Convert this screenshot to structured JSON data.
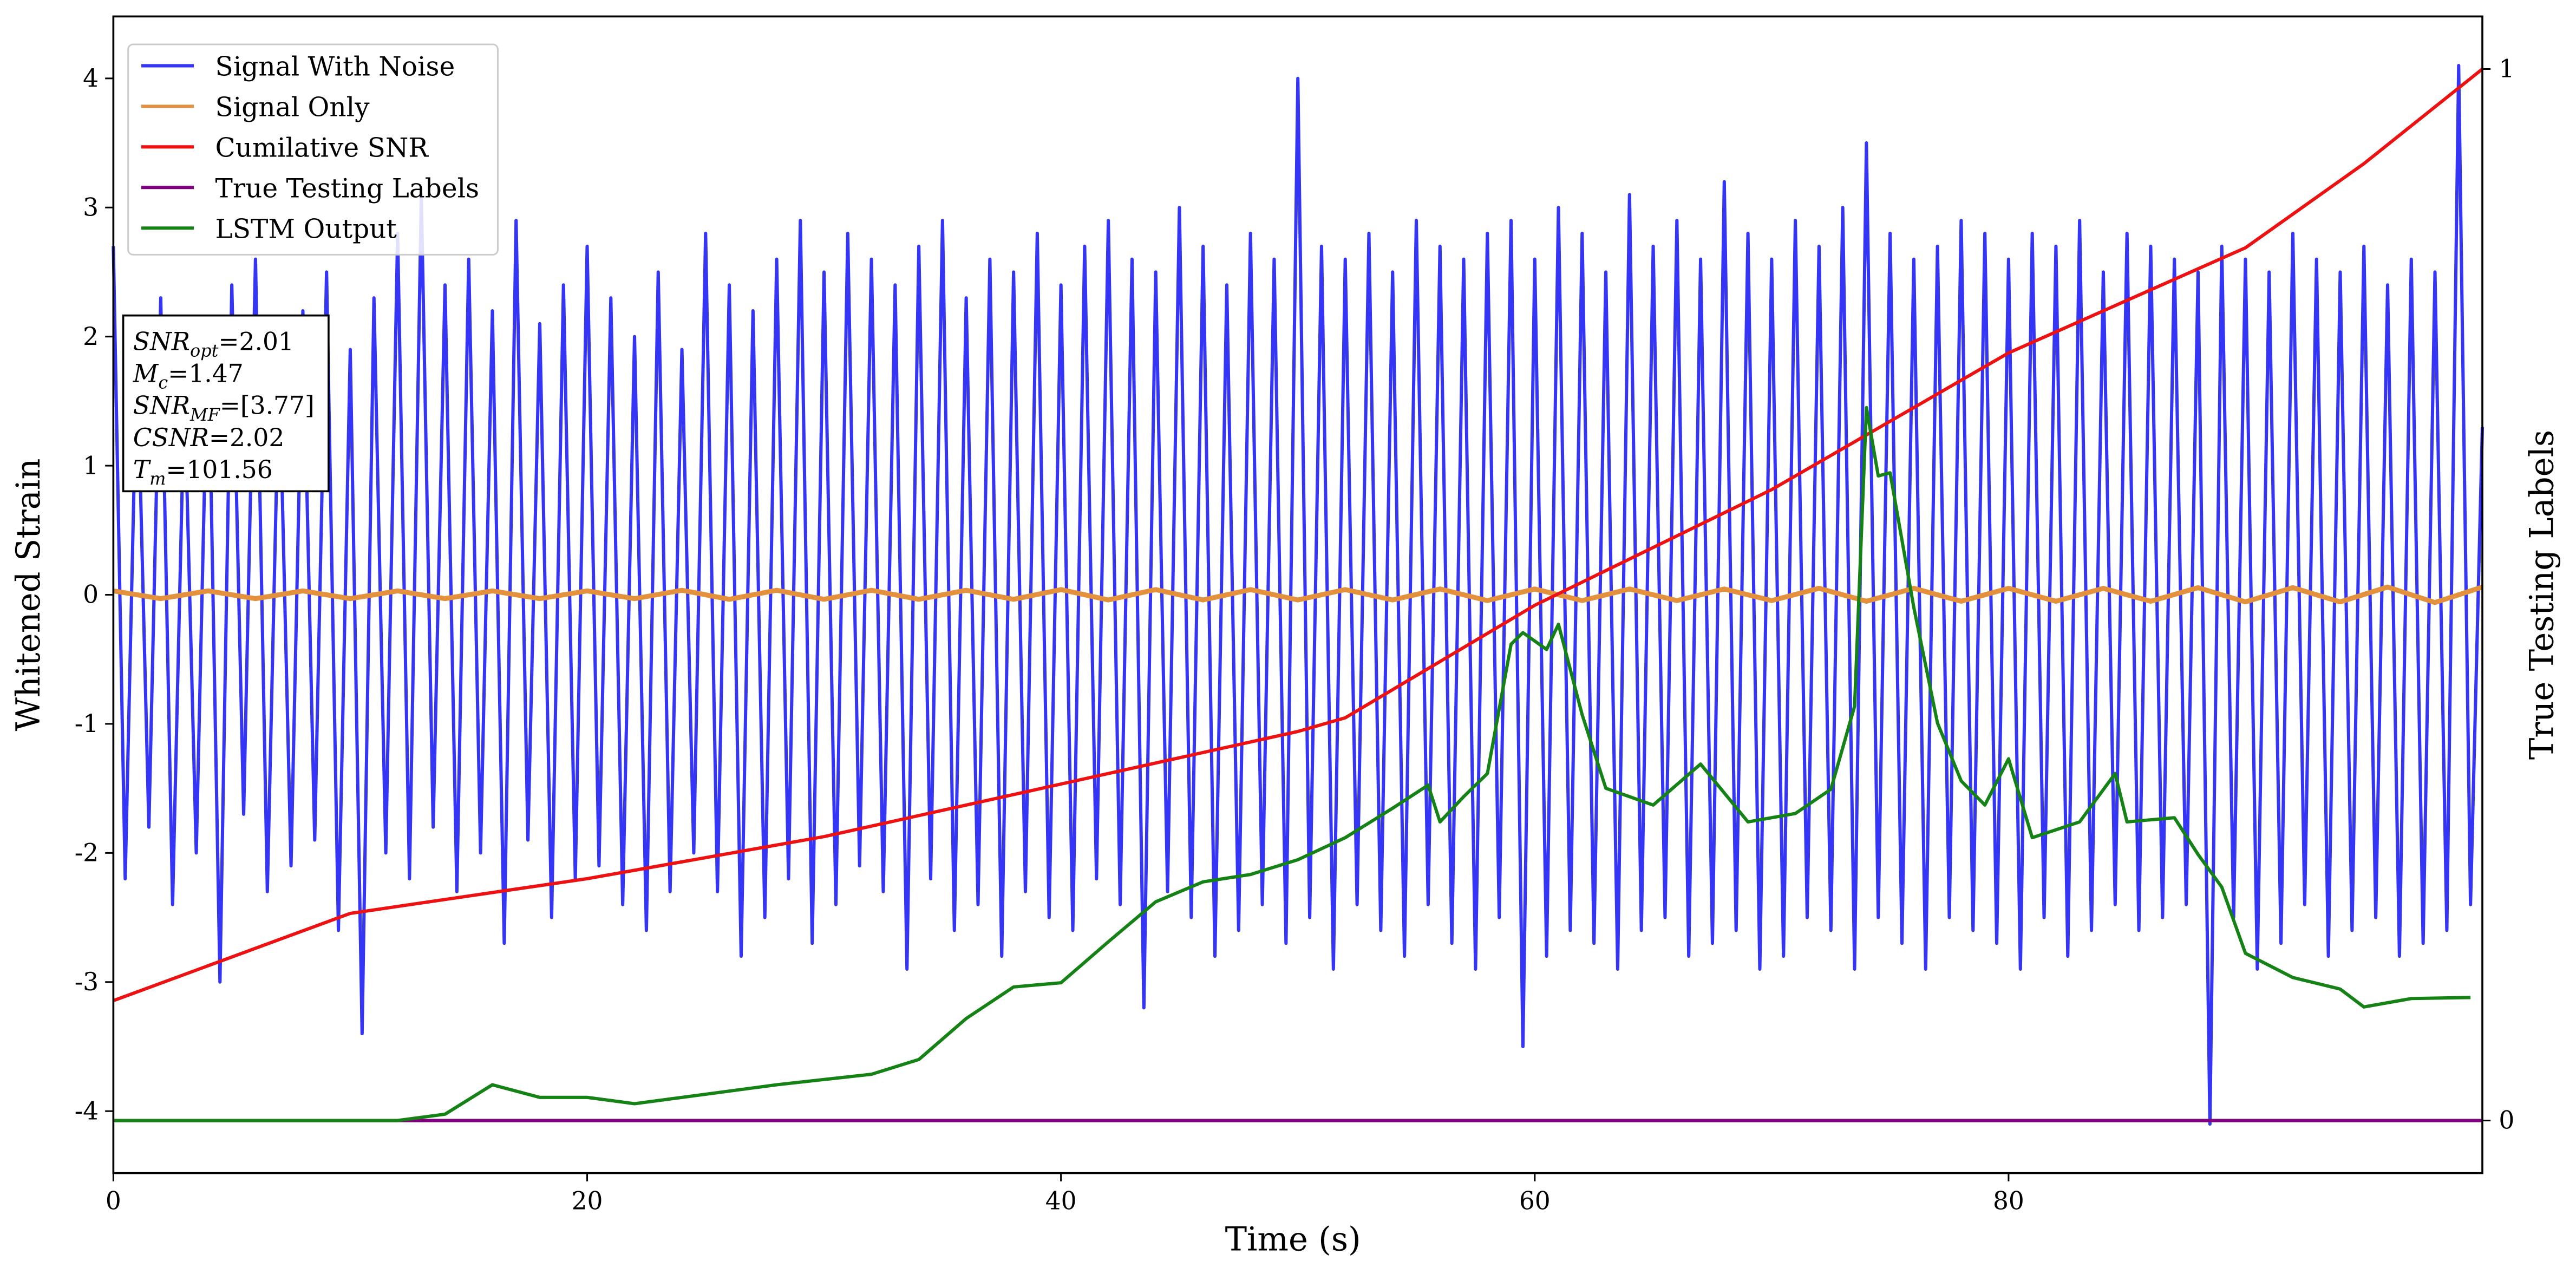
{
  "chart_data": {
    "type": "line",
    "xlabel": "Time (s)",
    "ylabel": "Whitened Strain",
    "y2label": "True Testing Labels",
    "xlim": [
      0,
      100
    ],
    "xticks": [
      0,
      20,
      40,
      60,
      80
    ],
    "ylim": [
      -4.48,
      4.48
    ],
    "yticks": [
      -4,
      -3,
      -2,
      -1,
      0,
      1,
      2,
      3,
      4
    ],
    "y2lim": [
      -0.05,
      1.05
    ],
    "y2ticks": [
      0,
      1
    ],
    "legend": "upper left",
    "series": [
      {
        "name": "Signal With Noise",
        "color": "#3535f6",
        "axis": "y",
        "x": [
          0,
          0.5,
          1,
          1.5,
          2,
          2.5,
          3,
          3.5,
          4,
          4.5,
          5,
          5.5,
          6,
          6.5,
          7,
          7.5,
          8,
          8.5,
          9,
          9.5,
          10,
          10.5,
          11,
          11.5,
          12,
          12.5,
          13,
          13.5,
          14,
          14.5,
          15,
          15.5,
          16,
          16.5,
          17,
          17.5,
          18,
          18.5,
          19,
          19.5,
          20,
          20.5,
          21,
          21.5,
          22,
          22.5,
          23,
          23.5,
          24,
          24.5,
          25,
          25.5,
          26,
          26.5,
          27,
          27.5,
          28,
          28.5,
          29,
          29.5,
          30,
          30.5,
          31,
          31.5,
          32,
          32.5,
          33,
          33.5,
          34,
          34.5,
          35,
          35.5,
          36,
          36.5,
          37,
          37.5,
          38,
          38.5,
          39,
          39.5,
          40,
          40.5,
          41,
          41.5,
          42,
          42.5,
          43,
          43.5,
          44,
          44.5,
          45,
          45.5,
          46,
          46.5,
          47,
          47.5,
          48,
          48.5,
          49,
          49.5,
          50,
          50.5,
          51,
          51.5,
          52,
          52.5,
          53,
          53.5,
          54,
          54.5,
          55,
          55.5,
          56,
          56.5,
          57,
          57.5,
          58,
          58.5,
          59,
          59.5,
          60,
          60.5,
          61,
          61.5,
          62,
          62.5,
          63,
          63.5,
          64,
          64.5,
          65,
          65.5,
          66,
          66.5,
          67,
          67.5,
          68,
          68.5,
          69,
          69.5,
          70,
          70.5,
          71,
          71.5,
          72,
          72.5,
          73,
          73.5,
          74,
          74.5,
          75,
          75.5,
          76,
          76.5,
          77,
          77.5,
          78,
          78.5,
          79,
          79.5,
          80,
          80.5,
          81,
          81.5,
          82,
          82.5,
          83,
          83.5,
          84,
          84.5,
          85,
          85.5,
          86,
          86.5,
          87,
          87.5,
          88,
          88.5,
          89,
          89.5,
          90,
          90.5,
          91,
          91.5,
          92,
          92.5,
          93,
          93.5,
          94,
          94.5,
          95,
          95.5,
          96,
          96.5,
          97,
          97.5,
          98,
          98.5,
          99,
          99.5,
          100
        ],
        "values": [
          2.7,
          -2.2,
          1.9,
          -1.8,
          2.3,
          -2.4,
          1.6,
          -2.0,
          2.1,
          -3.0,
          2.4,
          -1.7,
          2.6,
          -2.3,
          1.8,
          -2.1,
          2.2,
          -1.9,
          2.5,
          -2.6,
          1.9,
          -3.4,
          2.3,
          -2.0,
          2.8,
          -2.2,
          3.1,
          -1.8,
          2.4,
          -2.3,
          2.6,
          -2.0,
          2.2,
          -2.7,
          2.9,
          -1.9,
          2.1,
          -2.5,
          2.4,
          -2.2,
          2.7,
          -2.1,
          2.3,
          -2.4,
          2.0,
          -2.6,
          2.5,
          -2.3,
          1.9,
          -2.0,
          2.8,
          -2.3,
          2.4,
          -2.8,
          2.2,
          -2.5,
          2.6,
          -2.2,
          2.9,
          -2.7,
          2.5,
          -2.4,
          2.8,
          -2.1,
          2.6,
          -2.3,
          2.4,
          -2.9,
          2.7,
          -2.2,
          2.9,
          -2.6,
          2.3,
          -2.4,
          2.6,
          -2.8,
          2.5,
          -2.3,
          2.8,
          -2.5,
          2.4,
          -2.6,
          2.7,
          -2.2,
          2.9,
          -2.4,
          2.6,
          -3.2,
          2.5,
          -2.3,
          3.0,
          -2.5,
          2.7,
          -2.8,
          2.4,
          -2.6,
          2.8,
          -2.4,
          2.6,
          -2.7,
          4.0,
          -2.5,
          2.7,
          -2.9,
          2.6,
          -2.4,
          2.8,
          -2.6,
          2.5,
          -2.8,
          2.9,
          -2.4,
          2.7,
          -2.7,
          2.6,
          -2.9,
          2.8,
          -2.5,
          2.9,
          -3.5,
          2.6,
          -2.8,
          3.0,
          -2.6,
          2.8,
          -2.7,
          2.5,
          -2.9,
          3.1,
          -2.6,
          2.7,
          -2.5,
          2.9,
          -2.8,
          2.6,
          -2.7,
          3.2,
          -2.6,
          2.8,
          -2.9,
          2.6,
          -2.8,
          2.9,
          -2.5,
          2.7,
          -2.6,
          3.0,
          -2.9,
          3.5,
          -2.5,
          2.8,
          -2.7,
          2.6,
          -2.9,
          2.7,
          -2.5,
          2.9,
          -2.6,
          2.8,
          -2.7,
          2.6,
          -2.9,
          2.8,
          -2.5,
          2.7,
          -2.8,
          2.9,
          -2.6,
          2.5,
          -2.4,
          2.8,
          -2.6,
          2.7,
          -2.5,
          2.6,
          -2.4,
          2.5,
          -4.1,
          2.7,
          -2.5,
          2.6,
          -2.9,
          2.5,
          -2.7,
          2.8,
          -2.4,
          2.6,
          -2.8,
          2.5,
          -2.6,
          2.7,
          -2.5,
          2.4,
          -2.8,
          2.6,
          -2.7,
          2.5,
          -2.6,
          4.1,
          -2.4,
          1.3
        ]
      },
      {
        "name": "Signal Only",
        "color": "#e3913c",
        "axis": "y",
        "x": [
          0,
          2,
          4,
          6,
          8,
          10,
          12,
          14,
          16,
          18,
          20,
          22,
          24,
          26,
          28,
          30,
          32,
          34,
          36,
          38,
          40,
          42,
          44,
          46,
          48,
          50,
          52,
          54,
          56,
          58,
          60,
          62,
          64,
          66,
          68,
          70,
          72,
          74,
          76,
          78,
          80,
          82,
          84,
          86,
          88,
          90,
          92,
          94,
          96,
          98,
          100
        ],
        "values": [
          0.03,
          -0.03,
          0.03,
          -0.03,
          0.03,
          -0.03,
          0.03,
          -0.03,
          0.03,
          -0.03,
          0.03,
          -0.03,
          0.035,
          -0.035,
          0.035,
          -0.035,
          0.035,
          -0.035,
          0.035,
          -0.035,
          0.04,
          -0.04,
          0.04,
          -0.04,
          0.04,
          -0.04,
          0.04,
          -0.04,
          0.045,
          -0.045,
          0.045,
          -0.045,
          0.045,
          -0.045,
          0.045,
          -0.045,
          0.05,
          -0.05,
          0.05,
          -0.05,
          0.05,
          -0.05,
          0.05,
          -0.05,
          0.055,
          -0.055,
          0.055,
          -0.055,
          0.06,
          -0.06,
          0.06
        ]
      },
      {
        "name": "Cumilative SNR",
        "color": "#ee1111",
        "axis": "y2",
        "x": [
          0,
          10,
          20,
          30,
          40,
          50,
          52,
          60,
          70,
          80,
          86,
          90,
          95,
          100
        ],
        "values": [
          0.114,
          0.197,
          0.23,
          0.27,
          0.32,
          0.37,
          0.383,
          0.49,
          0.6,
          0.73,
          0.79,
          0.83,
          0.91,
          1.0
        ]
      },
      {
        "name": "True Testing Labels",
        "color": "#800080",
        "axis": "y2",
        "x": [
          0,
          100
        ],
        "values": [
          0,
          0
        ]
      },
      {
        "name": "LSTM Output",
        "color": "#148214",
        "axis": "y2",
        "x": [
          0,
          12,
          14,
          16,
          18,
          20,
          22,
          25,
          28,
          30,
          32,
          34,
          36,
          38,
          40,
          42,
          44,
          46,
          48,
          50,
          52,
          54,
          55.5,
          56,
          57,
          58,
          59,
          59.5,
          60.5,
          61,
          62,
          63,
          65,
          67,
          69,
          71,
          72.5,
          73.5,
          74,
          74.5,
          75,
          76,
          77,
          78,
          79,
          80,
          81,
          83,
          84.5,
          85,
          87,
          88,
          89,
          90,
          92,
          94,
          95,
          97,
          99.5
        ],
        "values": [
          0,
          0,
          0.006,
          0.034,
          0.022,
          0.022,
          0.016,
          0.025,
          0.034,
          0.039,
          0.044,
          0.058,
          0.097,
          0.127,
          0.131,
          0.17,
          0.208,
          0.227,
          0.234,
          0.248,
          0.269,
          0.297,
          0.319,
          0.284,
          0.308,
          0.33,
          0.453,
          0.464,
          0.448,
          0.472,
          0.386,
          0.316,
          0.3,
          0.339,
          0.284,
          0.292,
          0.315,
          0.394,
          0.678,
          0.613,
          0.616,
          0.488,
          0.378,
          0.323,
          0.3,
          0.344,
          0.269,
          0.284,
          0.33,
          0.284,
          0.288,
          0.253,
          0.222,
          0.159,
          0.136,
          0.125,
          0.108,
          0.116,
          0.117
        ]
      }
    ],
    "annotation": [
      {
        "symbol": "SNR",
        "subscript": "opt",
        "text": "=2.01"
      },
      {
        "symbol": "M",
        "subscript": "c",
        "text": "=1.47"
      },
      {
        "symbol": "SNR",
        "subscript": "MF",
        "text": "=[3.77]"
      },
      {
        "symbol": "CSNR",
        "text": "=2.02"
      },
      {
        "symbol": "T",
        "subscript": "m",
        "text": "=101.56"
      }
    ]
  }
}
